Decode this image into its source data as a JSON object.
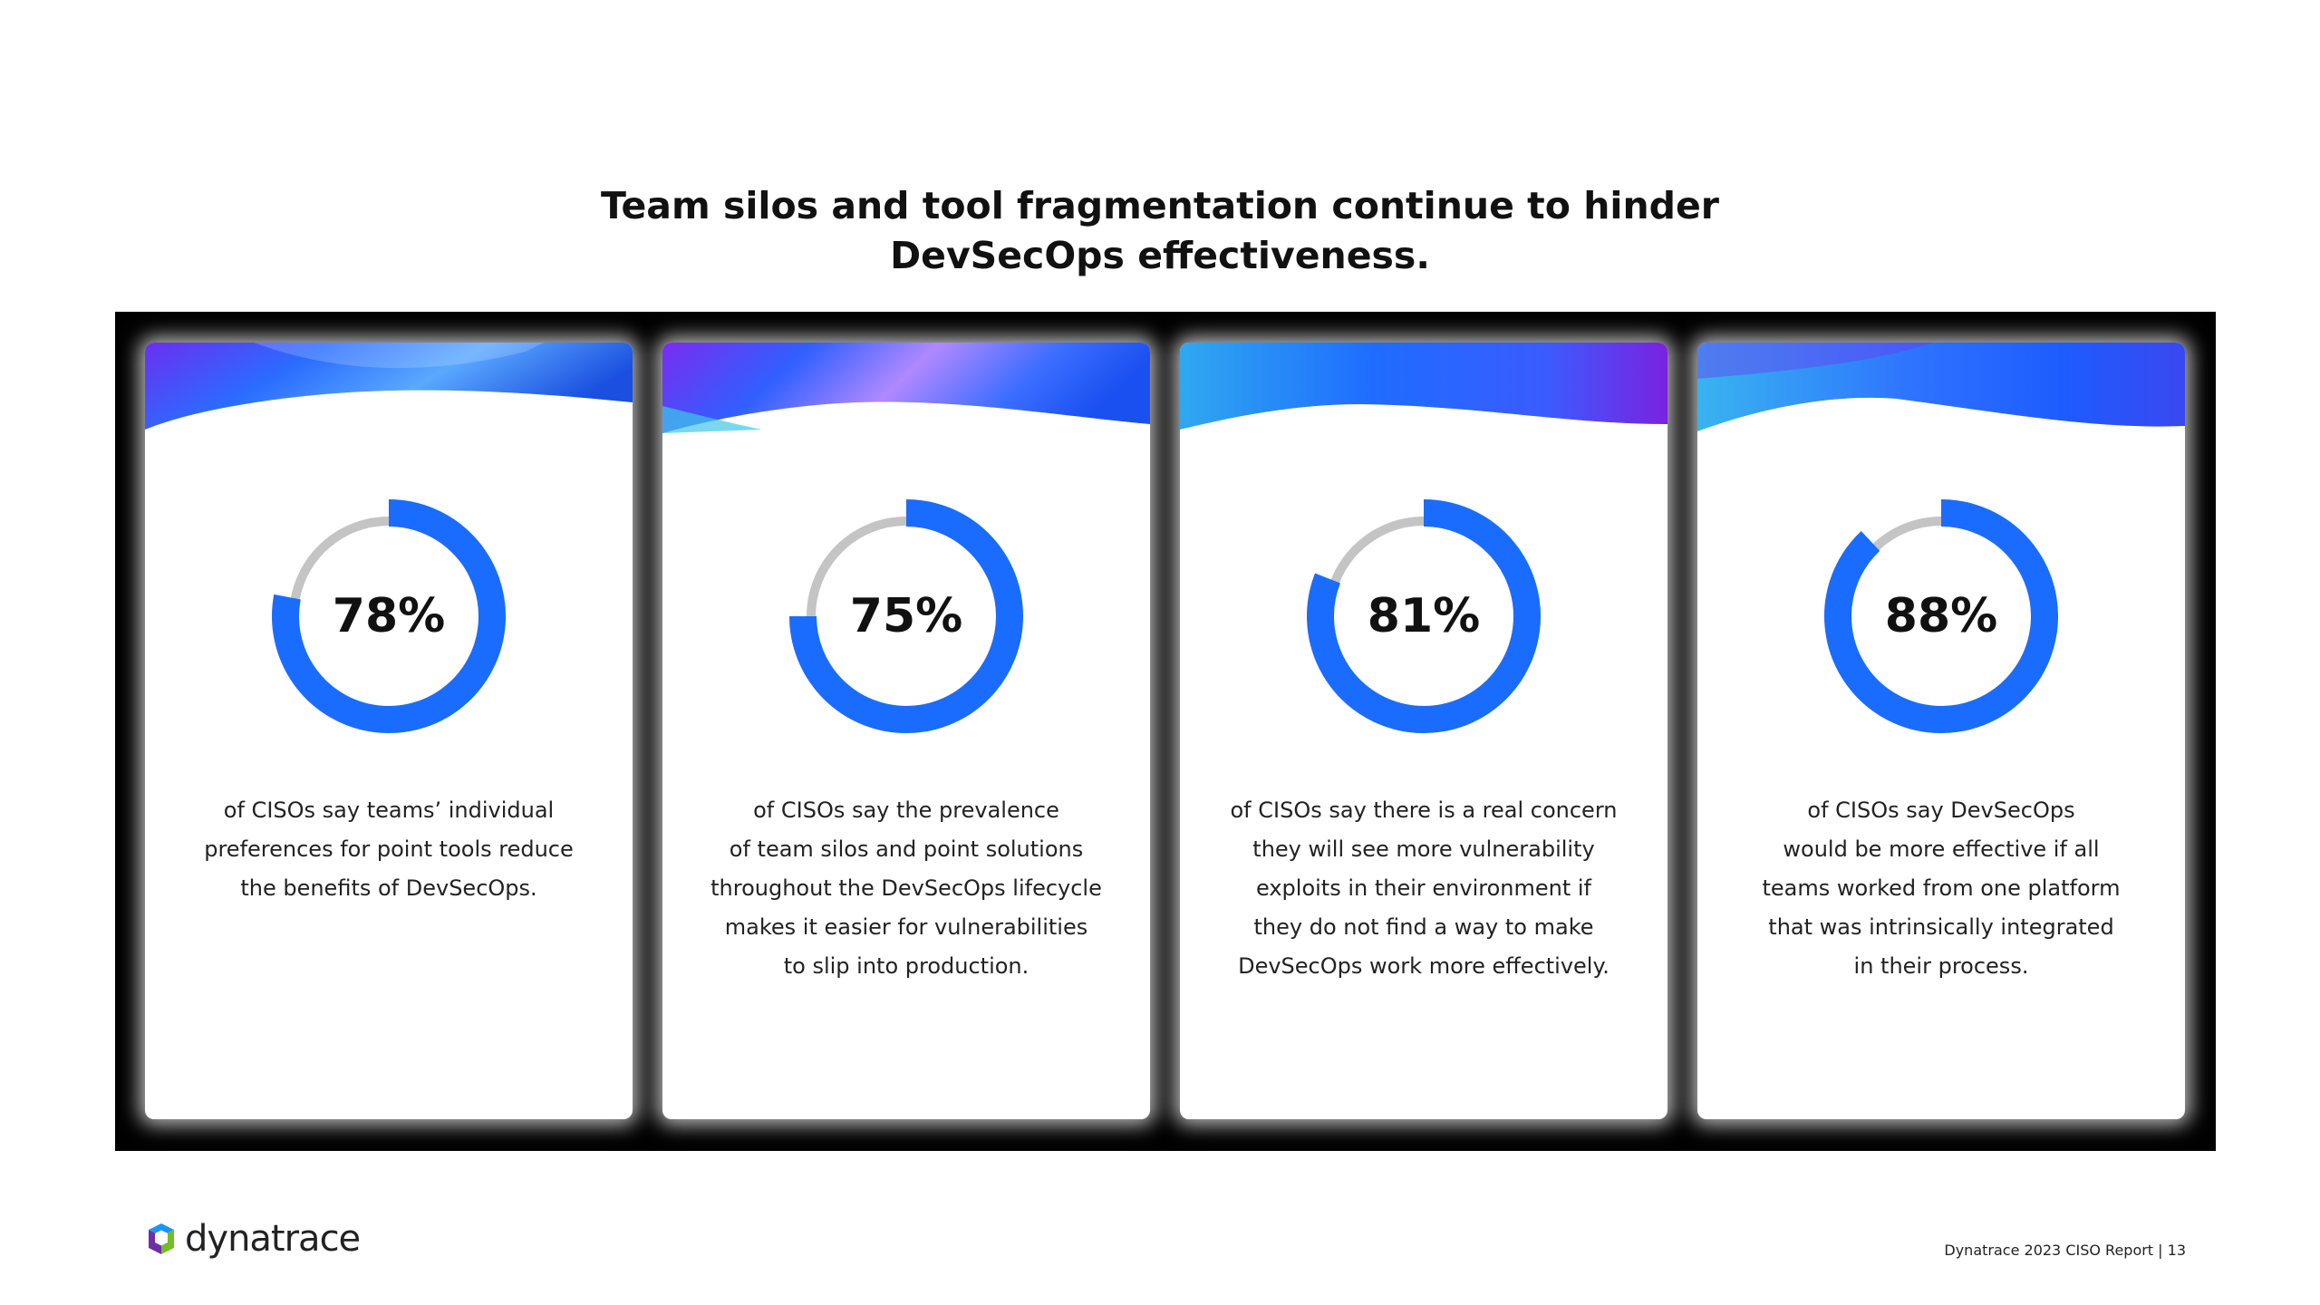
{
  "title_lines": [
    "Team silos and tool fragmentation continue to hinder",
    "DevSecOps effectiveness."
  ],
  "colors": {
    "accent": "#1a6cff",
    "track": "#c4c4c4",
    "panel": "#000000"
  },
  "chart_data": [
    {
      "type": "pie",
      "values": [
        78
      ],
      "labels": [
        "78%"
      ],
      "description_lines": [
        "of CISOs say teams’ individual",
        "preferences for point tools reduce",
        "the benefits of DevSecOps."
      ]
    },
    {
      "type": "pie",
      "values": [
        75
      ],
      "labels": [
        "75%"
      ],
      "description_lines": [
        "of CISOs say the prevalence",
        "of team silos and point solutions",
        "throughout the DevSecOps lifecycle",
        "makes it easier for vulnerabilities",
        "to slip into production."
      ]
    },
    {
      "type": "pie",
      "values": [
        81
      ],
      "labels": [
        "81%"
      ],
      "description_lines": [
        "of CISOs say there is a real concern",
        "they will see more vulnerability",
        "exploits in their environment if",
        "they do not find a way to make",
        "DevSecOps work more effectively."
      ]
    },
    {
      "type": "pie",
      "values": [
        88
      ],
      "labels": [
        "88%"
      ],
      "description_lines": [
        "of CISOs say DevSecOps",
        "would be more effective if all",
        "teams worked from one platform",
        "that was intrinsically integrated",
        "in their process."
      ]
    }
  ],
  "logo": {
    "text": "dynatrace",
    "icon": "dynatrace-logo-icon"
  },
  "footer": "Dynatrace 2023 CISO Report | 13"
}
